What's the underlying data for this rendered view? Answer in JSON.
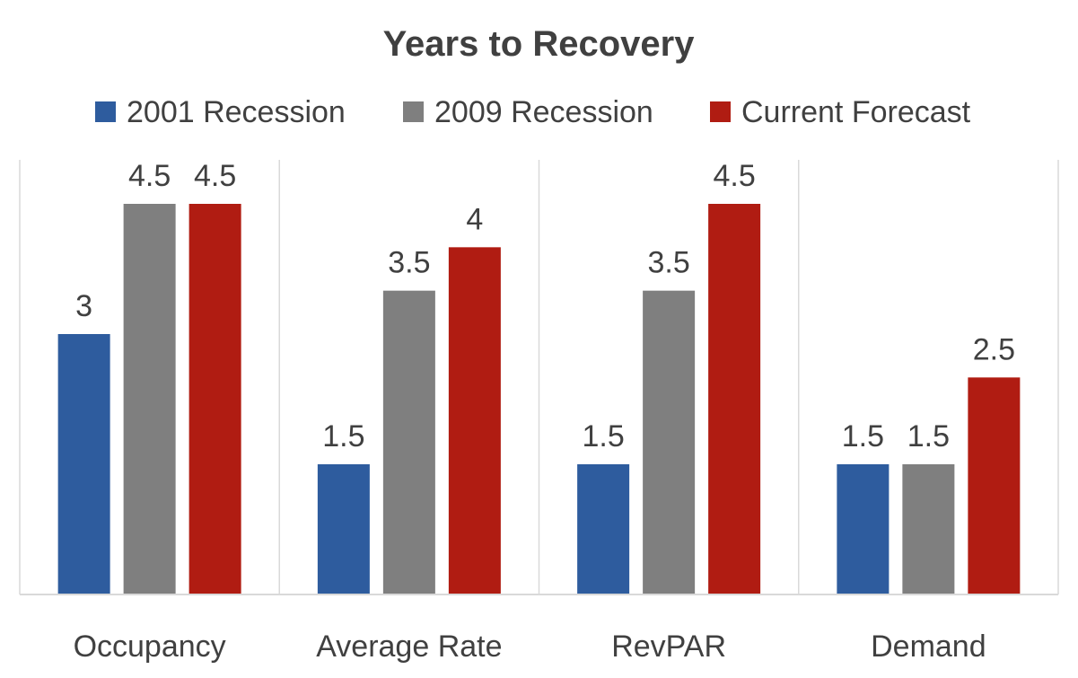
{
  "chart_data": {
    "type": "bar",
    "title": "Years to Recovery",
    "categories": [
      "Occupancy",
      "Average Rate",
      "RevPAR",
      "Demand"
    ],
    "series": [
      {
        "name": "2001 Recession",
        "color": "#2e5c9e",
        "values": [
          3,
          1.5,
          1.5,
          1.5
        ]
      },
      {
        "name": "2009 Recession",
        "color": "#7f7f7f",
        "values": [
          4.5,
          3.5,
          3.5,
          1.5
        ]
      },
      {
        "name": "Current Forecast",
        "color": "#b01c12",
        "values": [
          4.5,
          4,
          4.5,
          2.5
        ]
      }
    ],
    "ylim": [
      0,
      5
    ],
    "legend_position": "top",
    "data_labels": true,
    "gridlines": false,
    "category_separators": true,
    "axis_color": "#d9d9d9"
  }
}
